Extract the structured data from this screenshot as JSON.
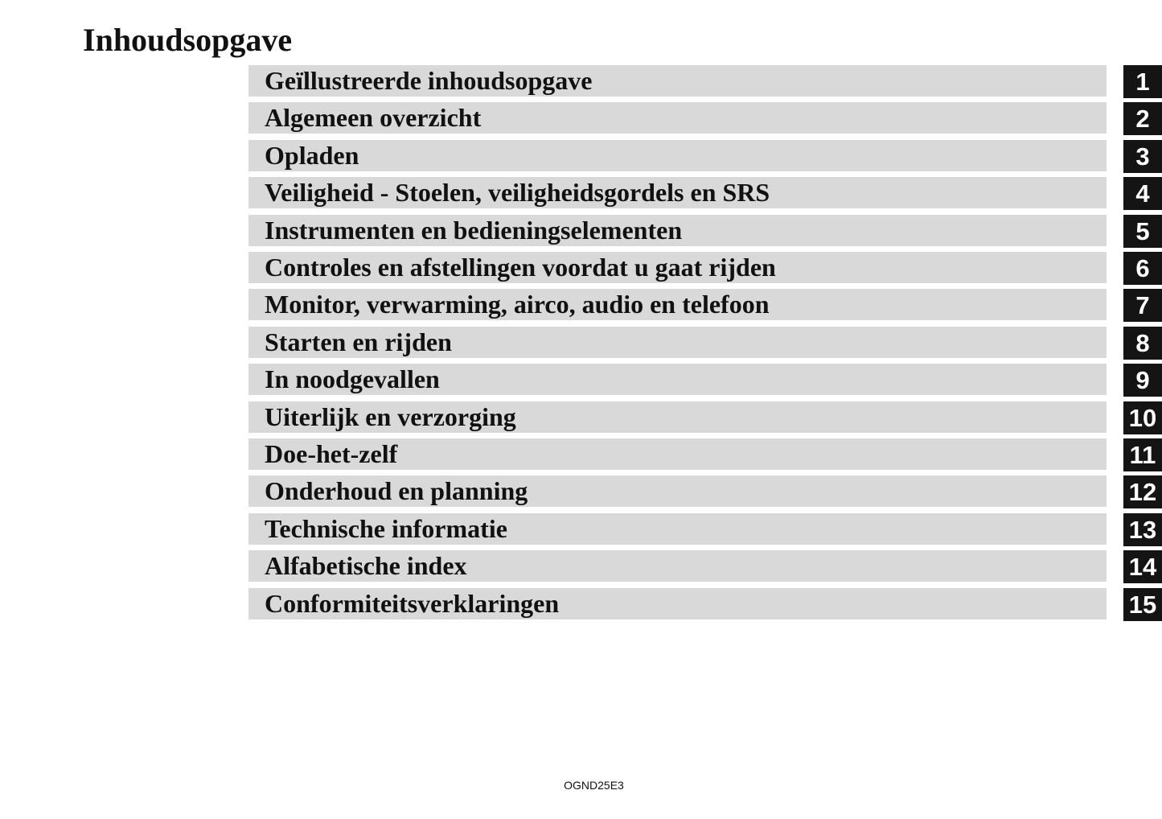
{
  "page": {
    "title": "Inhoudsopgave",
    "footer_code": "OGND25E3"
  },
  "colors": {
    "bar": "#d9d9d9",
    "tab": "#141414",
    "tab_text": "#ffffff"
  },
  "toc": [
    {
      "label": "Geïllustreerde inhoudsopgave",
      "number": "1"
    },
    {
      "label": "Algemeen overzicht",
      "number": "2"
    },
    {
      "label": "Opladen",
      "number": "3"
    },
    {
      "label": "Veiligheid - Stoelen, veiligheidsgordels en SRS",
      "number": "4"
    },
    {
      "label": "Instrumenten en bedieningselementen",
      "number": "5"
    },
    {
      "label": "Controles en afstellingen voordat u gaat rijden",
      "number": "6"
    },
    {
      "label": "Monitor, verwarming, airco, audio en telefoon",
      "number": "7"
    },
    {
      "label": "Starten en rijden",
      "number": "8"
    },
    {
      "label": "In noodgevallen",
      "number": "9"
    },
    {
      "label": "Uiterlijk en verzorging",
      "number": "10"
    },
    {
      "label": "Doe-het-zelf",
      "number": "11"
    },
    {
      "label": "Onderhoud en planning",
      "number": "12"
    },
    {
      "label": "Technische informatie",
      "number": "13"
    },
    {
      "label": "Alfabetische index",
      "number": "14"
    },
    {
      "label": "Conformiteitsverklaringen",
      "number": "15"
    }
  ]
}
